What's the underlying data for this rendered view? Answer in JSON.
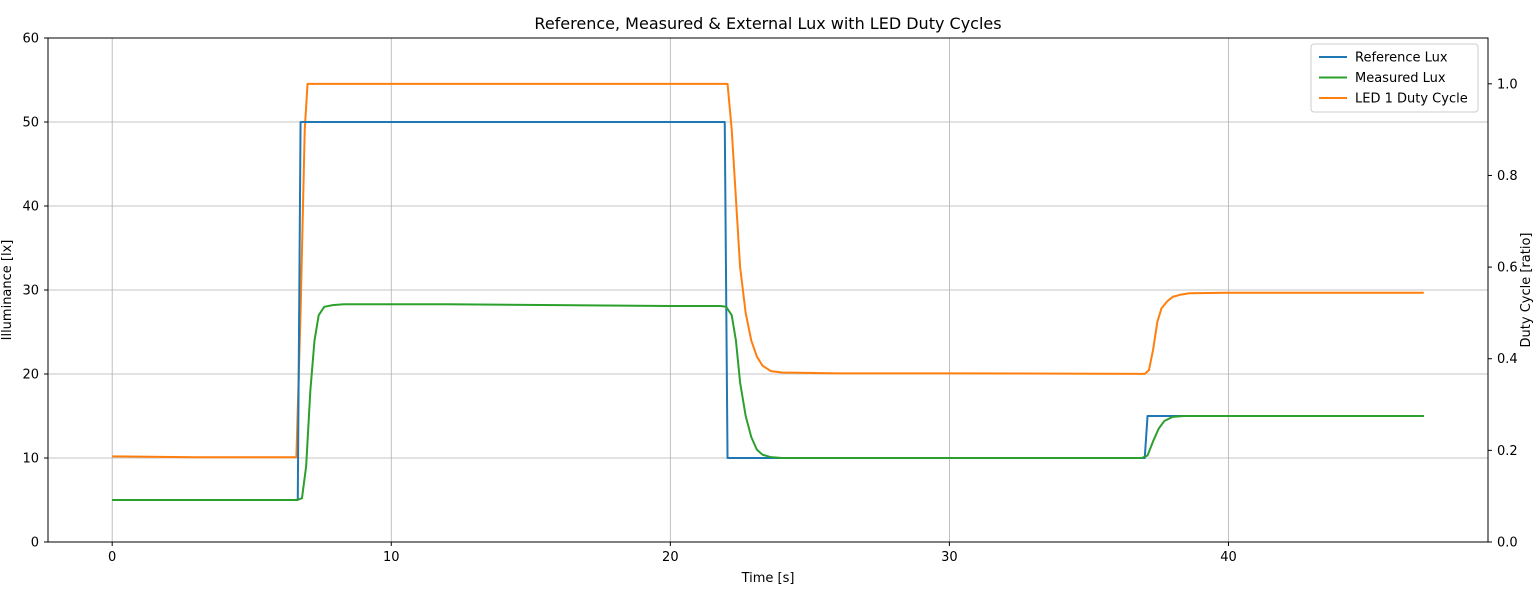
{
  "chart_data": {
    "type": "line",
    "title": "Reference, Measured & External Lux with LED Duty Cycles",
    "xlabel": "Time [s]",
    "ylabel": "Illuminance [lx]",
    "y2label": "Duty Cycle [ratio]",
    "xlim": [
      -2.3,
      49.3
    ],
    "ylim": [
      0,
      60
    ],
    "y2lim": [
      0,
      1.1
    ],
    "xticks": [
      0,
      10,
      20,
      30,
      40
    ],
    "yticks": [
      0,
      10,
      20,
      30,
      40,
      50,
      60
    ],
    "y2ticks": [
      0.0,
      0.2,
      0.4,
      0.6,
      0.8,
      1.0
    ],
    "y2tick_labels": [
      "0.0",
      "0.2",
      "0.4",
      "0.6",
      "0.8",
      "1.0"
    ],
    "grid": true,
    "legend_position": "top-right",
    "series": [
      {
        "name": "Reference Lux",
        "axis": "left",
        "color": "#1f77b4",
        "x": [
          0,
          6.65,
          6.75,
          21.95,
          22.05,
          37.0,
          37.1,
          47.0
        ],
        "y": [
          5,
          5,
          50,
          50,
          10,
          10,
          15,
          15
        ]
      },
      {
        "name": "Measured Lux",
        "axis": "left",
        "color": "#2ca02c",
        "x": [
          0,
          6.6,
          6.8,
          6.95,
          7.1,
          7.25,
          7.4,
          7.6,
          7.9,
          8.3,
          9,
          12,
          16,
          20,
          21.8,
          22.0,
          22.2,
          22.35,
          22.5,
          22.7,
          22.9,
          23.1,
          23.3,
          23.6,
          24.0,
          26,
          30,
          36.9,
          37.1,
          37.3,
          37.5,
          37.7,
          38.0,
          38.4,
          39,
          44,
          47
        ],
        "y": [
          5,
          5,
          5.2,
          9,
          18,
          24,
          27,
          28,
          28.2,
          28.3,
          28.3,
          28.3,
          28.2,
          28.1,
          28.1,
          28.0,
          27,
          24,
          19,
          15,
          12.5,
          11.0,
          10.4,
          10.1,
          10.0,
          10.0,
          10.0,
          10.0,
          10.3,
          12.0,
          13.5,
          14.4,
          14.9,
          15.0,
          15.0,
          15.0,
          15.0
        ]
      },
      {
        "name": "LED 1 Duty Cycle",
        "axis": "right",
        "color": "#ff7f0e",
        "x": [
          0,
          3,
          6.6,
          6.75,
          6.9,
          7.0,
          10,
          22.05,
          22.2,
          22.35,
          22.5,
          22.7,
          22.9,
          23.1,
          23.3,
          23.6,
          24.0,
          26,
          30,
          37.0,
          37.15,
          37.3,
          37.45,
          37.6,
          37.8,
          38.0,
          38.3,
          38.6,
          40,
          47
        ],
        "y": [
          0.187,
          0.185,
          0.185,
          0.5,
          0.9,
          1.0,
          1.0,
          1.0,
          0.9,
          0.75,
          0.6,
          0.5,
          0.44,
          0.405,
          0.385,
          0.373,
          0.37,
          0.368,
          0.368,
          0.367,
          0.375,
          0.42,
          0.48,
          0.51,
          0.525,
          0.535,
          0.54,
          0.543,
          0.544,
          0.544
        ]
      }
    ]
  }
}
